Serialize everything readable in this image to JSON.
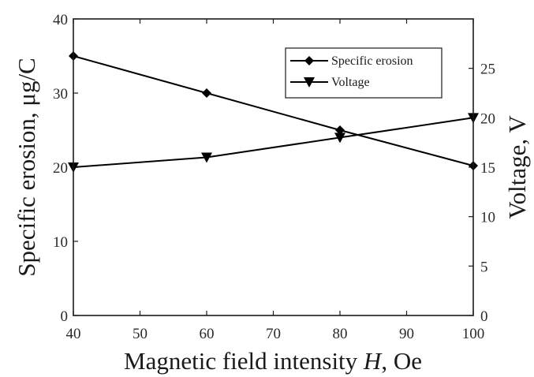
{
  "chart_data": {
    "type": "line",
    "xlabel_prefix": "Magnetic field intensity ",
    "xlabel_var": "H",
    "xlabel_suffix": ", Oe",
    "ylabel_left": "Specific erosion, μg/C",
    "ylabel_right": "Voltage, V",
    "xlim": [
      40,
      100
    ],
    "xticks": [
      40,
      50,
      60,
      70,
      80,
      90,
      100
    ],
    "ylim_left": [
      0,
      40
    ],
    "yticks_left": [
      0,
      10,
      20,
      30,
      40
    ],
    "ylim_right": [
      0,
      30
    ],
    "yticks_right": [
      0,
      5,
      10,
      15,
      20,
      25
    ],
    "grid": false,
    "legend_position": "top-right",
    "x": [
      40,
      60,
      80,
      100
    ],
    "series": [
      {
        "name": "Specific erosion",
        "axis": "left",
        "marker": "diamond",
        "values": [
          35,
          30,
          25,
          20.2
        ]
      },
      {
        "name": "Voltage",
        "axis": "right",
        "marker": "triangle-down",
        "values": [
          15,
          16,
          18,
          20
        ]
      }
    ]
  },
  "colors": {
    "line": "#000000",
    "axis": "#1a1a1a",
    "background": "#ffffff"
  }
}
